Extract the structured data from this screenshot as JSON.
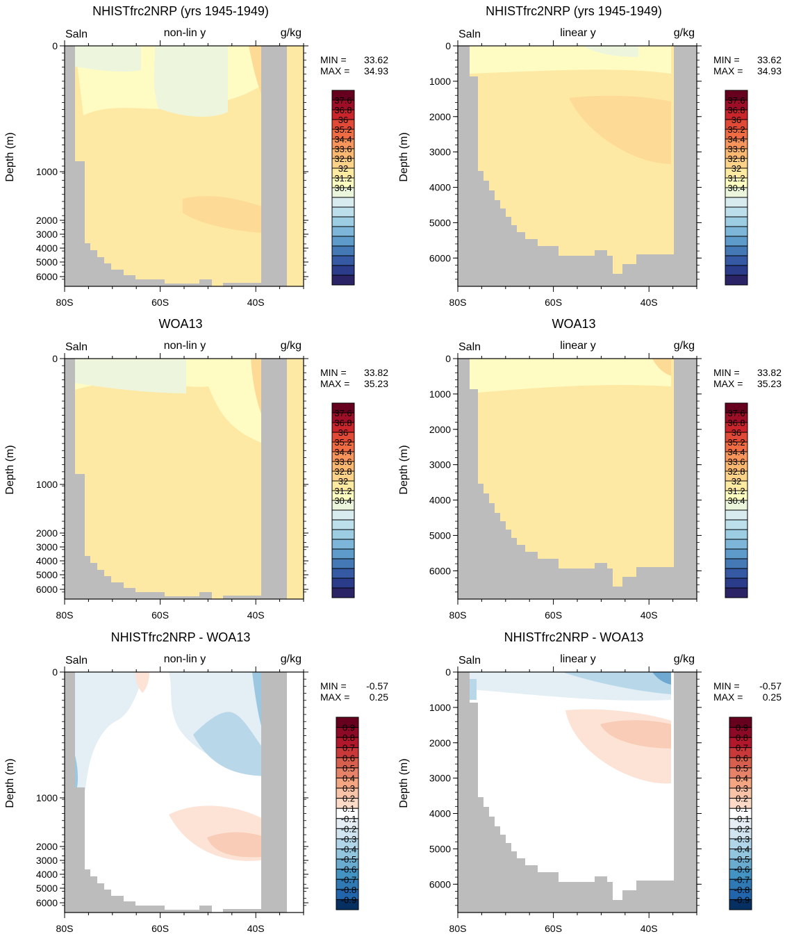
{
  "chart_data": [
    {
      "id": "p1",
      "type": "heatmap",
      "title": "NHISTfrc2NRP (yrs 1945-1949)",
      "left_label": "Saln",
      "center_label": "non-lin y",
      "right_label": "g/kg",
      "ylabel": "Depth (m)",
      "y_scale": "non-linear",
      "x_ticks": [
        "80S",
        "60S",
        "40S"
      ],
      "x_tick_values": [
        -80,
        -60,
        -40
      ],
      "xlim": [
        -80,
        -30
      ],
      "y_ticks": [
        "0",
        "1000",
        "2000",
        "3000",
        "4000",
        "5000",
        "6000"
      ],
      "stats": {
        "min_label": "MIN =",
        "min": "33.62",
        "max_label": "MAX =",
        "max": "34.93"
      },
      "colorbar": "salinity"
    },
    {
      "id": "p2",
      "type": "heatmap",
      "title": "NHISTfrc2NRP (yrs 1945-1949)",
      "left_label": "Saln",
      "center_label": "linear y",
      "right_label": "g/kg",
      "ylabel": "Depth (m)",
      "y_scale": "linear",
      "x_ticks": [
        "80S",
        "60S",
        "40S"
      ],
      "x_tick_values": [
        -80,
        -60,
        -40
      ],
      "xlim": [
        -80,
        -30
      ],
      "y_ticks": [
        "0",
        "1000",
        "2000",
        "3000",
        "4000",
        "5000",
        "6000"
      ],
      "ylim": [
        0,
        6800
      ],
      "stats": {
        "min_label": "MIN =",
        "min": "33.62",
        "max_label": "MAX =",
        "max": "34.93"
      },
      "colorbar": "salinity"
    },
    {
      "id": "p3",
      "type": "heatmap",
      "title": "WOA13",
      "left_label": "Saln",
      "center_label": "non-lin y",
      "right_label": "g/kg",
      "ylabel": "Depth (m)",
      "y_scale": "non-linear",
      "x_ticks": [
        "80S",
        "60S",
        "40S"
      ],
      "x_tick_values": [
        -80,
        -60,
        -40
      ],
      "xlim": [
        -80,
        -30
      ],
      "y_ticks": [
        "0",
        "1000",
        "2000",
        "3000",
        "4000",
        "5000",
        "6000"
      ],
      "stats": {
        "min_label": "MIN =",
        "min": "33.82",
        "max_label": "MAX =",
        "max": "35.23"
      },
      "colorbar": "salinity"
    },
    {
      "id": "p4",
      "type": "heatmap",
      "title": "WOA13",
      "left_label": "Saln",
      "center_label": "linear y",
      "right_label": "g/kg",
      "ylabel": "Depth (m)",
      "y_scale": "linear",
      "x_ticks": [
        "80S",
        "60S",
        "40S"
      ],
      "x_tick_values": [
        -80,
        -60,
        -40
      ],
      "xlim": [
        -80,
        -30
      ],
      "y_ticks": [
        "0",
        "1000",
        "2000",
        "3000",
        "4000",
        "5000",
        "6000"
      ],
      "ylim": [
        0,
        6800
      ],
      "stats": {
        "min_label": "MIN =",
        "min": "33.82",
        "max_label": "MAX =",
        "max": "35.23"
      },
      "colorbar": "salinity"
    },
    {
      "id": "p5",
      "type": "heatmap",
      "title": "NHISTfrc2NRP - WOA13",
      "left_label": "Saln",
      "center_label": "non-lin y",
      "right_label": "g/kg",
      "ylabel": "Depth (m)",
      "y_scale": "non-linear",
      "x_ticks": [
        "80S",
        "60S",
        "40S"
      ],
      "x_tick_values": [
        -80,
        -60,
        -40
      ],
      "xlim": [
        -80,
        -30
      ],
      "y_ticks": [
        "0",
        "1000",
        "2000",
        "3000",
        "4000",
        "5000",
        "6000"
      ],
      "stats": {
        "min_label": "MIN =",
        "min": "-0.57",
        "max_label": "MAX =",
        "max": "0.25"
      },
      "colorbar": "difference"
    },
    {
      "id": "p6",
      "type": "heatmap",
      "title": "NHISTfrc2NRP - WOA13",
      "left_label": "Saln",
      "center_label": "linear y",
      "right_label": "g/kg",
      "ylabel": "Depth (m)",
      "y_scale": "linear",
      "x_ticks": [
        "80S",
        "60S",
        "40S"
      ],
      "x_tick_values": [
        -80,
        -60,
        -40
      ],
      "xlim": [
        -80,
        -30
      ],
      "y_ticks": [
        "0",
        "1000",
        "2000",
        "3000",
        "4000",
        "5000",
        "6000"
      ],
      "ylim": [
        0,
        6800
      ],
      "stats": {
        "min_label": "MIN =",
        "min": "-0.57",
        "max_label": "MAX =",
        "max": "0.25"
      },
      "colorbar": "difference"
    }
  ],
  "colorbars": {
    "salinity": {
      "labels": [
        "37.6",
        "36.8",
        "36",
        "35.2",
        "34.4",
        "33.6",
        "32.8",
        "32",
        "31.2",
        "30.4"
      ],
      "colors": [
        "#67001f",
        "#9e0f27",
        "#c9252b",
        "#e04a36",
        "#f06c43",
        "#f8955a",
        "#fbb870",
        "#fdd38a",
        "#feeaa0",
        "#fefdc0",
        "#ecf6dc",
        "#d8ecf0",
        "#bcdfeb",
        "#9ccde3",
        "#7db6d8",
        "#5e9bcb",
        "#4479b6",
        "#3559a2",
        "#2b3d8a",
        "#2a2466"
      ]
    },
    "difference": {
      "labels": [
        "0.9",
        "0.8",
        "0.7",
        "0.6",
        "0.5",
        "0.4",
        "0.3",
        "0.2",
        "0.1",
        "-0.1",
        "-0.2",
        "-0.3",
        "-0.4",
        "-0.5",
        "-0.6",
        "-0.7",
        "-0.8",
        "-0.9"
      ],
      "colors": [
        "#67001f",
        "#8d0a26",
        "#b2182b",
        "#c9393a",
        "#d6604d",
        "#e58267",
        "#f4a582",
        "#f8c3a6",
        "#fddbc7",
        "#ffffff",
        "#e4eef4",
        "#d1e5f0",
        "#b1d5e8",
        "#92c5de",
        "#6aabd0",
        "#4393c3",
        "#2f79b5",
        "#2166ac",
        "#053061"
      ]
    }
  },
  "fields": {
    "base": "#fde9a3",
    "upper": "#fefcc3",
    "fresh": "#eef5dd",
    "salty": "#fddb96",
    "land": "#bcbcbc",
    "diff_base": "#ffffff",
    "neg1": "#e3eef5",
    "neg2": "#d1e5f0",
    "neg3": "#b8d8ea",
    "neg4": "#9bc8e0",
    "neg5": "#6fa9d2",
    "pos1": "#fce3d6",
    "pos2": "#f8ccb6"
  }
}
